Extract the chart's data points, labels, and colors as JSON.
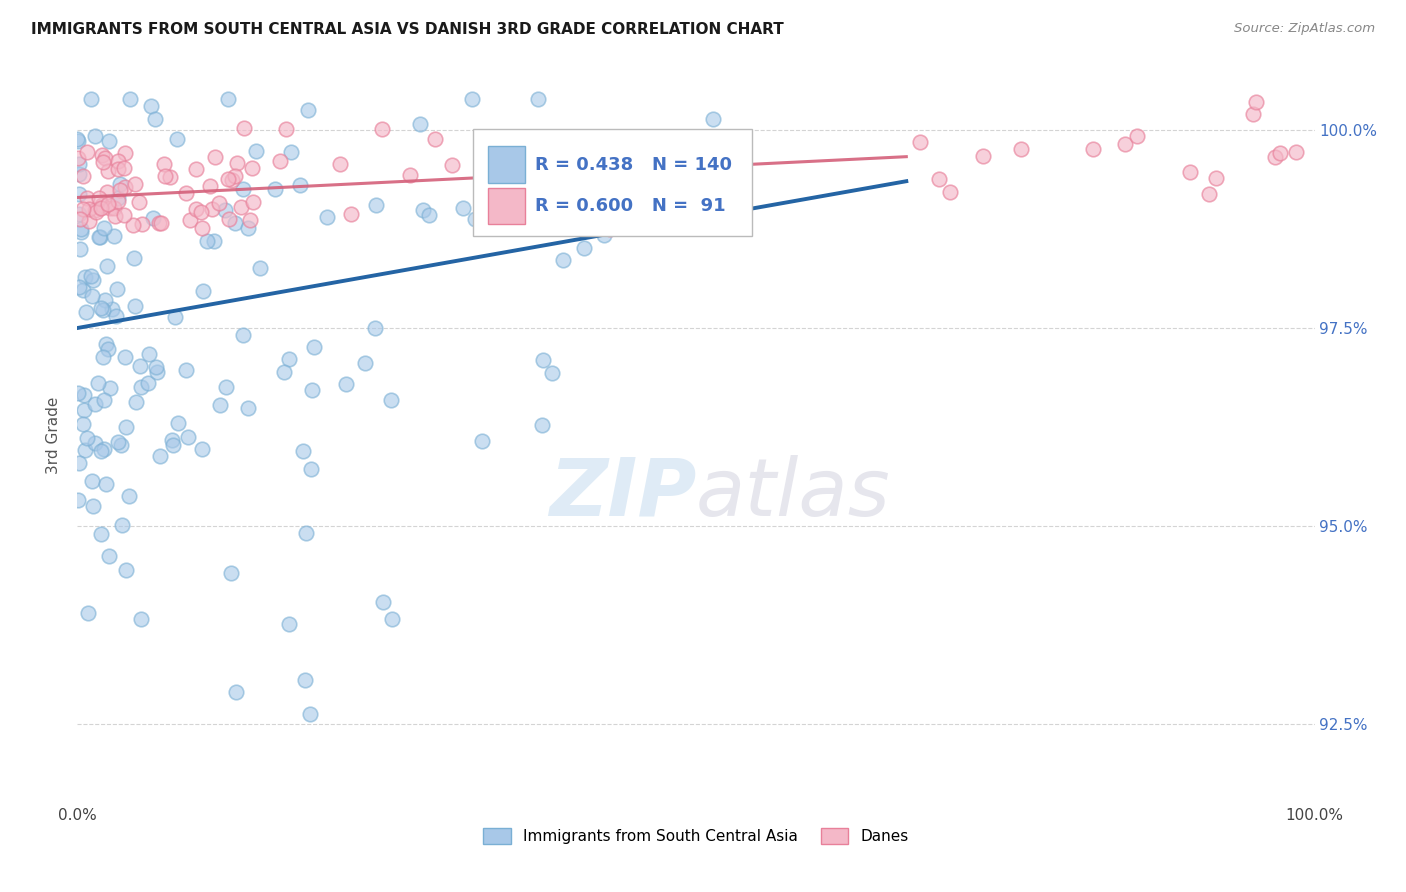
{
  "title": "IMMIGRANTS FROM SOUTH CENTRAL ASIA VS DANISH 3RD GRADE CORRELATION CHART",
  "source": "Source: ZipAtlas.com",
  "ylabel": "3rd Grade",
  "xlim": [
    0,
    100
  ],
  "ylim": [
    91.5,
    100.8
  ],
  "ytick_labels": [
    "92.5%",
    "95.0%",
    "97.5%",
    "100.0%"
  ],
  "ytick_values": [
    92.5,
    95.0,
    97.5,
    100.0
  ],
  "legend_blue_label": "Immigrants from South Central Asia",
  "legend_pink_label": "Danes",
  "R_blue": 0.438,
  "N_blue": 140,
  "R_pink": 0.6,
  "N_pink": 91,
  "blue_color": "#a8c8e8",
  "pink_color": "#f4b8c8",
  "blue_edge_color": "#7aafd4",
  "pink_edge_color": "#e8809a",
  "blue_line_color": "#2464a4",
  "pink_line_color": "#d4607a",
  "watermark_zip": "ZIP",
  "watermark_atlas": "atlas",
  "background_color": "#ffffff",
  "grid_color": "#d0d0d0",
  "seed": 12
}
